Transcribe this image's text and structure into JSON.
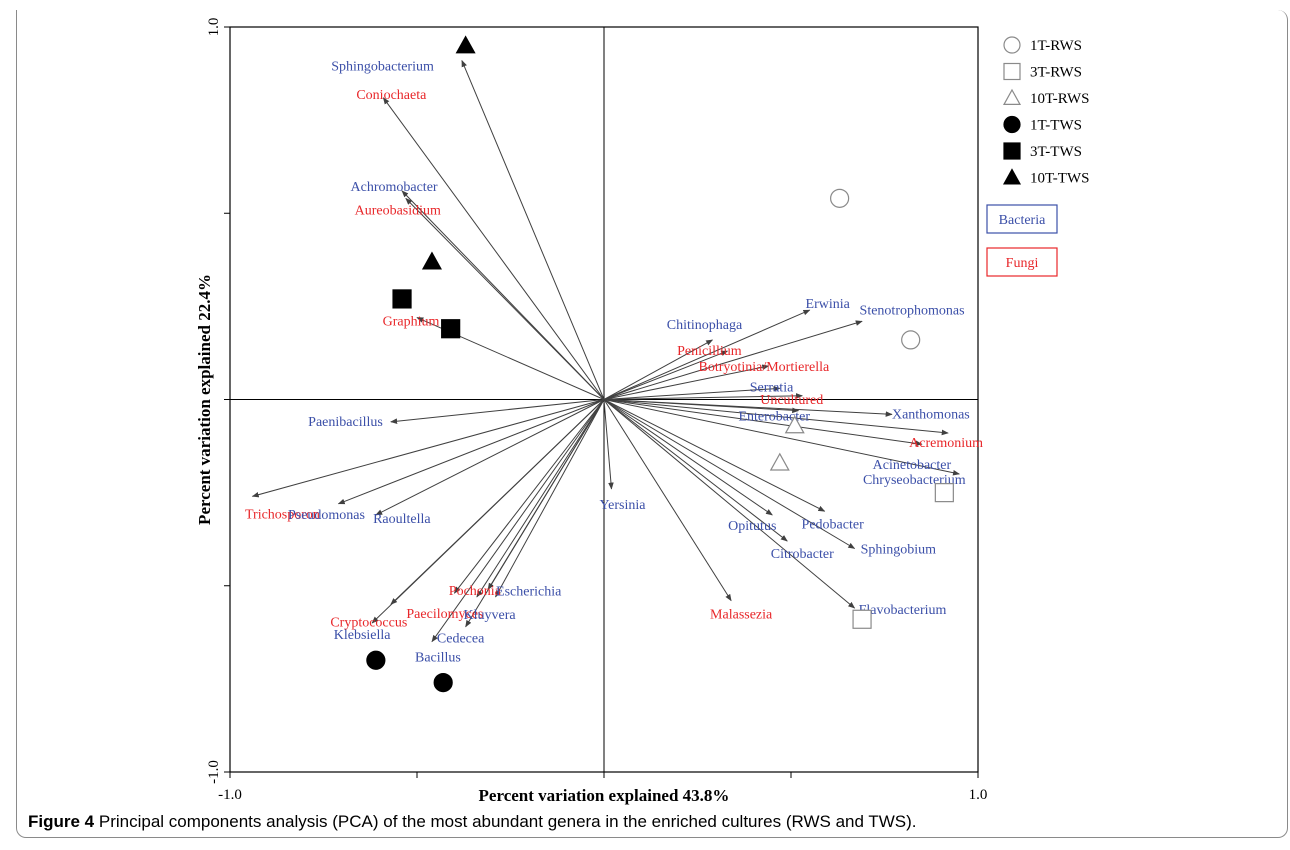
{
  "chart_data": {
    "type": "scatter",
    "title": "",
    "xlabel": "Percent variation explained 43.8%",
    "ylabel": "Percent variation explained 22.4%",
    "xlim": [
      -1.0,
      1.0
    ],
    "ylim": [
      -1.0,
      1.0
    ],
    "x_tick_labels": [
      "-1.0",
      "1.0"
    ],
    "y_tick_labels": [
      "1.0",
      "-1.0"
    ],
    "colors": {
      "Bacteria": "#3b4fa8",
      "Fungi": "#e8272a",
      "axis": "#000000",
      "arrow": "#404040"
    },
    "group_legend": [
      {
        "label": "Bacteria",
        "color": "#3b4fa8"
      },
      {
        "label": "Fungi",
        "color": "#e8272a"
      }
    ],
    "sample_legend": [
      {
        "label": "1T-RWS",
        "marker": "circle-open"
      },
      {
        "label": "3T-RWS",
        "marker": "square-open"
      },
      {
        "label": "10T-RWS",
        "marker": "triangle-open"
      },
      {
        "label": "1T-TWS",
        "marker": "circle-filled"
      },
      {
        "label": "3T-TWS",
        "marker": "square-filled"
      },
      {
        "label": "10T-TWS",
        "marker": "triangle-filled"
      }
    ],
    "samples": [
      {
        "group": "1T-RWS",
        "x": 0.63,
        "y": 0.54
      },
      {
        "group": "1T-RWS",
        "x": 0.82,
        "y": 0.16
      },
      {
        "group": "3T-RWS",
        "x": 0.91,
        "y": -0.25
      },
      {
        "group": "3T-RWS",
        "x": 0.69,
        "y": -0.59
      },
      {
        "group": "10T-RWS",
        "x": 0.51,
        "y": -0.07
      },
      {
        "group": "10T-RWS",
        "x": 0.47,
        "y": -0.17
      },
      {
        "group": "1T-TWS",
        "x": -0.61,
        "y": -0.7
      },
      {
        "group": "1T-TWS",
        "x": -0.43,
        "y": -0.76
      },
      {
        "group": "3T-TWS",
        "x": -0.54,
        "y": 0.27
      },
      {
        "group": "3T-TWS",
        "x": -0.41,
        "y": 0.19
      },
      {
        "group": "10T-TWS",
        "x": -0.46,
        "y": 0.37
      },
      {
        "group": "10T-TWS",
        "x": -0.37,
        "y": 0.95
      }
    ],
    "genera": [
      {
        "name": "Sphingobacterium",
        "kind": "Bacteria",
        "x": -0.38,
        "y": 0.91
      },
      {
        "name": "Coniochaeta",
        "kind": "Fungi",
        "x": -0.59,
        "y": 0.81
      },
      {
        "name": "Achromobacter",
        "kind": "Bacteria",
        "x": -0.54,
        "y": 0.56
      },
      {
        "name": "Aureobasidium",
        "kind": "Fungi",
        "x": -0.53,
        "y": 0.54
      },
      {
        "name": "Graphium",
        "kind": "Fungi",
        "x": -0.5,
        "y": 0.22
      },
      {
        "name": "Paenibacillus",
        "kind": "Bacteria",
        "x": -0.57,
        "y": -0.06
      },
      {
        "name": "Trichosporon",
        "kind": "Fungi",
        "x": -0.94,
        "y": -0.26
      },
      {
        "name": "Pseudomonas",
        "kind": "Bacteria",
        "x": -0.71,
        "y": -0.28
      },
      {
        "name": "Raoultella",
        "kind": "Bacteria",
        "x": -0.61,
        "y": -0.31
      },
      {
        "name": "Klebsiella",
        "kind": "Bacteria",
        "x": -0.62,
        "y": -0.6
      },
      {
        "name": "Cryptococcus",
        "kind": "Fungi",
        "x": -0.57,
        "y": -0.55
      },
      {
        "name": "Bacillus",
        "kind": "Bacteria",
        "x": -0.46,
        "y": -0.65
      },
      {
        "name": "Paecilomyces",
        "kind": "Fungi",
        "x": -0.4,
        "y": -0.52
      },
      {
        "name": "Pochonia",
        "kind": "Fungi",
        "x": -0.34,
        "y": -0.53
      },
      {
        "name": "Escherichia",
        "kind": "Bacteria",
        "x": -0.31,
        "y": -0.51
      },
      {
        "name": "Kluyvera",
        "kind": "Bacteria",
        "x": -0.29,
        "y": -0.53
      },
      {
        "name": "Cedecea",
        "kind": "Bacteria",
        "x": -0.37,
        "y": -0.61
      },
      {
        "name": "Yersinia",
        "kind": "Bacteria",
        "x": 0.02,
        "y": -0.24
      },
      {
        "name": "Chitinophaga",
        "kind": "Bacteria",
        "x": 0.29,
        "y": 0.16
      },
      {
        "name": "Penicillium",
        "kind": "Fungi",
        "x": 0.33,
        "y": 0.13
      },
      {
        "name": "Erwinia",
        "kind": "Bacteria",
        "x": 0.55,
        "y": 0.24
      },
      {
        "name": "Stenotrophomonas",
        "kind": "Bacteria",
        "x": 0.69,
        "y": 0.21
      },
      {
        "name": "Botryotinia/Mortierella",
        "kind": "Fungi",
        "x": 0.44,
        "y": 0.09
      },
      {
        "name": "Serratia",
        "kind": "Bacteria",
        "x": 0.47,
        "y": 0.03
      },
      {
        "name": "Uncultured",
        "kind": "Fungi",
        "x": 0.53,
        "y": 0.01
      },
      {
        "name": "Enterobacter",
        "kind": "Bacteria",
        "x": 0.52,
        "y": -0.03
      },
      {
        "name": "Xanthomonas",
        "kind": "Bacteria",
        "x": 0.77,
        "y": -0.04
      },
      {
        "name": "Acremonium",
        "kind": "Fungi",
        "x": 0.92,
        "y": -0.09
      },
      {
        "name": "Acinetobacter",
        "kind": "Bacteria",
        "x": 0.85,
        "y": -0.12
      },
      {
        "name": "Chryseobacterium",
        "kind": "Bacteria",
        "x": 0.95,
        "y": -0.2
      },
      {
        "name": "Opitutus",
        "kind": "Bacteria",
        "x": 0.45,
        "y": -0.31
      },
      {
        "name": "Pedobacter",
        "kind": "Bacteria",
        "x": 0.59,
        "y": -0.3
      },
      {
        "name": "Sphingobium",
        "kind": "Bacteria",
        "x": 0.67,
        "y": -0.4
      },
      {
        "name": "Citrobacter",
        "kind": "Bacteria",
        "x": 0.49,
        "y": -0.38
      },
      {
        "name": "Flavobacterium",
        "kind": "Bacteria",
        "x": 0.67,
        "y": -0.56
      },
      {
        "name": "Malassezia",
        "kind": "Fungi",
        "x": 0.34,
        "y": -0.54
      }
    ]
  },
  "caption": {
    "label": "Figure 4",
    "text": "Principal components analysis (PCA) of the most abundant genera in the enriched cultures (RWS and TWS)."
  }
}
